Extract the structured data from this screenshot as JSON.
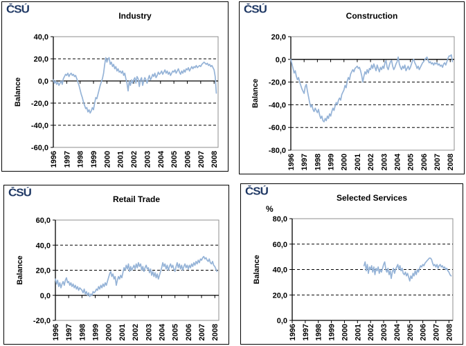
{
  "branding": {
    "logo_text": "ČSÚ",
    "logo_color": "#1F3864"
  },
  "styles": {
    "line_color": "#95B3D7",
    "plot_border_color": "#8C8C8C",
    "axis_color": "#000000",
    "grid_color": "#000000",
    "background": "#FFFFFF"
  },
  "chart_data": [
    {
      "type": "line",
      "title": "Industry",
      "ylabel": "Balance",
      "percent_label": "",
      "ymin": -60,
      "ymax": 40,
      "axis_y": 0,
      "x_min": 1996,
      "x_max": 2008.3,
      "data_start_x": 1996,
      "points_per_year": 12,
      "grid": "dashed horizontal",
      "legend": "none",
      "dashed_gridlines": [
        20,
        -20,
        -40
      ],
      "y_ticks": [
        {
          "value": 40,
          "label": "40,0"
        },
        {
          "value": 20,
          "label": "20,0"
        },
        {
          "value": 0,
          "label": "0,0"
        },
        {
          "value": -20,
          "label": "-20,0"
        },
        {
          "value": -40,
          "label": "-40,0"
        },
        {
          "value": -60,
          "label": "-60,0"
        }
      ],
      "x_ticks": [
        {
          "value": 1996,
          "label": "1996"
        },
        {
          "value": 1997,
          "label": "1997"
        },
        {
          "value": 1998,
          "label": "1998"
        },
        {
          "value": 1999,
          "label": "1999"
        },
        {
          "value": 2000,
          "label": "2000"
        },
        {
          "value": 2001,
          "label": "2001"
        },
        {
          "value": 2002,
          "label": "2002"
        },
        {
          "value": 2003,
          "label": "2003"
        },
        {
          "value": 2004,
          "label": "2004"
        },
        {
          "value": 2005,
          "label": "2005"
        },
        {
          "value": 2006,
          "label": "2006"
        },
        {
          "value": 2007,
          "label": "2007"
        },
        {
          "value": 2008,
          "label": "2008"
        }
      ],
      "values": [
        1,
        -2,
        0,
        -3,
        -1,
        -4,
        -2,
        0,
        -3,
        2,
        4,
        6,
        5,
        7,
        4,
        6,
        7,
        5,
        6,
        4,
        5,
        2,
        -1,
        -4,
        -8,
        -12,
        -15,
        -19,
        -22,
        -25,
        -24,
        -28,
        -26,
        -29,
        -27,
        -24,
        -26,
        -20,
        -15,
        -16,
        -12,
        -8,
        -4,
        -1,
        2,
        7,
        15,
        21,
        17,
        20,
        21,
        15,
        17,
        13,
        15,
        11,
        13,
        9,
        11,
        8,
        9,
        7,
        9,
        5,
        7,
        2,
        -2,
        -9,
        0,
        -4,
        1,
        -2,
        1,
        3,
        -2,
        4,
        2,
        -5,
        1,
        3,
        -4,
        0,
        3,
        1,
        -2,
        2,
        5,
        1,
        3,
        6,
        4,
        7,
        3,
        5,
        8,
        6,
        7,
        9,
        6,
        8,
        10,
        7,
        9,
        6,
        8,
        5,
        7,
        9,
        8,
        10,
        7,
        9,
        11,
        8,
        6,
        9,
        7,
        10,
        8,
        11,
        10,
        12,
        9,
        11,
        13,
        11,
        13,
        12,
        14,
        12,
        13,
        14,
        13,
        15,
        16,
        17,
        16,
        15,
        16,
        14,
        15,
        13,
        14,
        12,
        10,
        4,
        -11
      ]
    },
    {
      "type": "line",
      "title": "Construction",
      "ylabel": "Balance",
      "percent_label": "",
      "ymin": -80,
      "ymax": 20,
      "axis_y": 0,
      "x_min": 1996,
      "x_max": 2008.3,
      "data_start_x": 1996,
      "points_per_year": 12,
      "grid": "dashed horizontal",
      "legend": "none",
      "dashed_gridlines": [
        -20,
        -40,
        -60
      ],
      "y_ticks": [
        {
          "value": 20,
          "label": "20,0"
        },
        {
          "value": 0,
          "label": "0,0"
        },
        {
          "value": -20,
          "label": "-20,0"
        },
        {
          "value": -40,
          "label": "-40,0"
        },
        {
          "value": -60,
          "label": "-60,0"
        },
        {
          "value": -80,
          "label": "-80,0"
        }
      ],
      "x_ticks": [
        {
          "value": 1996,
          "label": "1996"
        },
        {
          "value": 1997,
          "label": "1997"
        },
        {
          "value": 1998,
          "label": "1998"
        },
        {
          "value": 1999,
          "label": "1999"
        },
        {
          "value": 2000,
          "label": "2000"
        },
        {
          "value": 2001,
          "label": "2001"
        },
        {
          "value": 2002,
          "label": "2002"
        },
        {
          "value": 2003,
          "label": "2003"
        },
        {
          "value": 2004,
          "label": "2004"
        },
        {
          "value": 2005,
          "label": "2005"
        },
        {
          "value": 2006,
          "label": "2006"
        },
        {
          "value": 2007,
          "label": "2007"
        },
        {
          "value": 2008,
          "label": "2008"
        }
      ],
      "values": [
        0,
        -4,
        -8,
        -12,
        -10,
        -15,
        -18,
        -16,
        -20,
        -23,
        -26,
        -28,
        -30,
        -24,
        -22,
        -28,
        -33,
        -38,
        -42,
        -40,
        -44,
        -46,
        -43,
        -45,
        -47,
        -44,
        -49,
        -52,
        -50,
        -54,
        -55,
        -52,
        -54,
        -50,
        -52,
        -48,
        -50,
        -46,
        -43,
        -45,
        -41,
        -38,
        -40,
        -36,
        -34,
        -36,
        -31,
        -29,
        -27,
        -23,
        -25,
        -19,
        -16,
        -18,
        -13,
        -11,
        -9,
        -11,
        -8,
        -7,
        -6,
        -8,
        -7,
        -10,
        -14,
        -20,
        -15,
        -11,
        -13,
        -9,
        -12,
        -8,
        -9,
        -5,
        -8,
        -4,
        -7,
        -10,
        -5,
        -8,
        -11,
        -7,
        -9,
        -6,
        -8,
        -3,
        -1,
        -7,
        -9,
        -5,
        -2,
        -1,
        -6,
        -9,
        -7,
        -4,
        -2,
        2,
        -4,
        -7,
        -9,
        -6,
        -8,
        -5,
        -10,
        -8,
        -6,
        -9,
        -7,
        -4,
        -1,
        0,
        -3,
        -5,
        -8,
        -6,
        -9,
        -7,
        -5,
        -3,
        -2,
        0,
        1,
        2,
        -1,
        -3,
        -2,
        -4,
        -3,
        -5,
        -3,
        -4,
        -3,
        -5,
        -4,
        -6,
        -5,
        -7,
        -4,
        -3,
        -5,
        -2,
        1,
        3,
        3,
        4,
        -2
      ]
    },
    {
      "type": "line",
      "title": "Retail Trade",
      "ylabel": "Balance",
      "percent_label": "",
      "ymin": -20,
      "ymax": 60,
      "axis_y": 0,
      "x_min": 1996,
      "x_max": 2008.3,
      "data_start_x": 1996,
      "points_per_year": 12,
      "grid": "dashed horizontal",
      "legend": "none",
      "dashed_gridlines": [
        40,
        20
      ],
      "y_ticks": [
        {
          "value": 60,
          "label": "60,0"
        },
        {
          "value": 40,
          "label": "40,0"
        },
        {
          "value": 20,
          "label": "20,0"
        },
        {
          "value": 0,
          "label": "0,0"
        },
        {
          "value": -20,
          "label": "-20,0"
        }
      ],
      "x_ticks": [
        {
          "value": 1996,
          "label": "1996"
        },
        {
          "value": 1997,
          "label": "1997"
        },
        {
          "value": 1998,
          "label": "1998"
        },
        {
          "value": 1999,
          "label": "1999"
        },
        {
          "value": 2000,
          "label": "2000"
        },
        {
          "value": 2001,
          "label": "2001"
        },
        {
          "value": 2002,
          "label": "2002"
        },
        {
          "value": 2003,
          "label": "2003"
        },
        {
          "value": 2004,
          "label": "2004"
        },
        {
          "value": 2005,
          "label": "2005"
        },
        {
          "value": 2006,
          "label": "2006"
        },
        {
          "value": 2007,
          "label": "2007"
        },
        {
          "value": 2008,
          "label": "2008"
        }
      ],
      "values": [
        13,
        9,
        12,
        7,
        10,
        6,
        9,
        11,
        8,
        12,
        14,
        10,
        11,
        8,
        10,
        7,
        9,
        6,
        8,
        5,
        7,
        4,
        6,
        5,
        4,
        2,
        5,
        1,
        3,
        0,
        2,
        -1,
        1,
        0,
        3,
        2,
        3,
        5,
        4,
        7,
        5,
        8,
        6,
        9,
        7,
        10,
        8,
        11,
        14,
        17,
        19,
        15,
        17,
        13,
        15,
        8,
        12,
        15,
        13,
        16,
        14,
        18,
        22,
        20,
        24,
        21,
        25,
        19,
        23,
        20,
        22,
        24,
        21,
        25,
        22,
        26,
        23,
        25,
        20,
        23,
        19,
        22,
        24,
        21,
        22,
        18,
        21,
        16,
        19,
        15,
        18,
        14,
        17,
        13,
        16,
        19,
        22,
        26,
        23,
        25,
        21,
        24,
        20,
        23,
        25,
        22,
        24,
        21,
        19,
        23,
        26,
        22,
        25,
        21,
        24,
        20,
        23,
        25,
        22,
        24,
        21,
        24,
        22,
        25,
        23,
        26,
        24,
        27,
        25,
        28,
        26,
        29,
        28,
        30,
        31,
        29,
        30,
        28,
        27,
        29,
        26,
        25,
        27,
        24,
        23,
        21,
        19
      ]
    },
    {
      "type": "line",
      "title": "Selected Services",
      "ylabel": "Balance",
      "percent_label": "%",
      "ymin": 0,
      "ymax": 80,
      "axis_y": 0,
      "x_min": 1996,
      "x_max": 2008.3,
      "data_start_x": 1996,
      "points_per_year": 12,
      "grid": "dashed horizontal",
      "legend": "none",
      "dashed_gridlines": [
        60,
        40,
        20
      ],
      "y_ticks": [
        {
          "value": 80,
          "label": "80,0"
        },
        {
          "value": 60,
          "label": "60,0"
        },
        {
          "value": 40,
          "label": "40,0"
        },
        {
          "value": 20,
          "label": "20,0"
        },
        {
          "value": 0,
          "label": "0,0"
        }
      ],
      "x_ticks": [
        {
          "value": 1996,
          "label": "1996"
        },
        {
          "value": 1997,
          "label": "1997"
        },
        {
          "value": 1998,
          "label": "1998"
        },
        {
          "value": 1999,
          "label": "1999"
        },
        {
          "value": 2000,
          "label": "2000"
        },
        {
          "value": 2001,
          "label": "2001"
        },
        {
          "value": 2002,
          "label": "2002"
        },
        {
          "value": 2003,
          "label": "2003"
        },
        {
          "value": 2004,
          "label": "2004"
        },
        {
          "value": 2005,
          "label": "2005"
        },
        {
          "value": 2006,
          "label": "2006"
        },
        {
          "value": 2007,
          "label": "2007"
        },
        {
          "value": 2008,
          "label": "2008"
        }
      ],
      "values": [
        null,
        null,
        null,
        null,
        null,
        null,
        null,
        null,
        null,
        null,
        null,
        null,
        null,
        null,
        null,
        null,
        null,
        null,
        null,
        null,
        null,
        null,
        null,
        null,
        null,
        null,
        null,
        null,
        null,
        null,
        null,
        null,
        null,
        null,
        null,
        null,
        null,
        null,
        null,
        null,
        null,
        null,
        null,
        null,
        null,
        null,
        null,
        null,
        null,
        null,
        null,
        null,
        null,
        null,
        null,
        null,
        null,
        null,
        null,
        null,
        null,
        null,
        null,
        null,
        null,
        null,
        43,
        46,
        39,
        44,
        37,
        42,
        40,
        43,
        38,
        42,
        36,
        41,
        39,
        42,
        37,
        40,
        38,
        41,
        44,
        46,
        40,
        38,
        41,
        36,
        39,
        33,
        38,
        41,
        37,
        40,
        42,
        44,
        40,
        43,
        39,
        41,
        37,
        36,
        38,
        35,
        37,
        34,
        31,
        35,
        33,
        37,
        35,
        39,
        36,
        40,
        38,
        41,
        43,
        42,
        44,
        43,
        45,
        46,
        47,
        48,
        49,
        49,
        48,
        45,
        43,
        44,
        42,
        44,
        41,
        43,
        44,
        42,
        43,
        41,
        42,
        40,
        41,
        39,
        38,
        36,
        35
      ]
    }
  ]
}
